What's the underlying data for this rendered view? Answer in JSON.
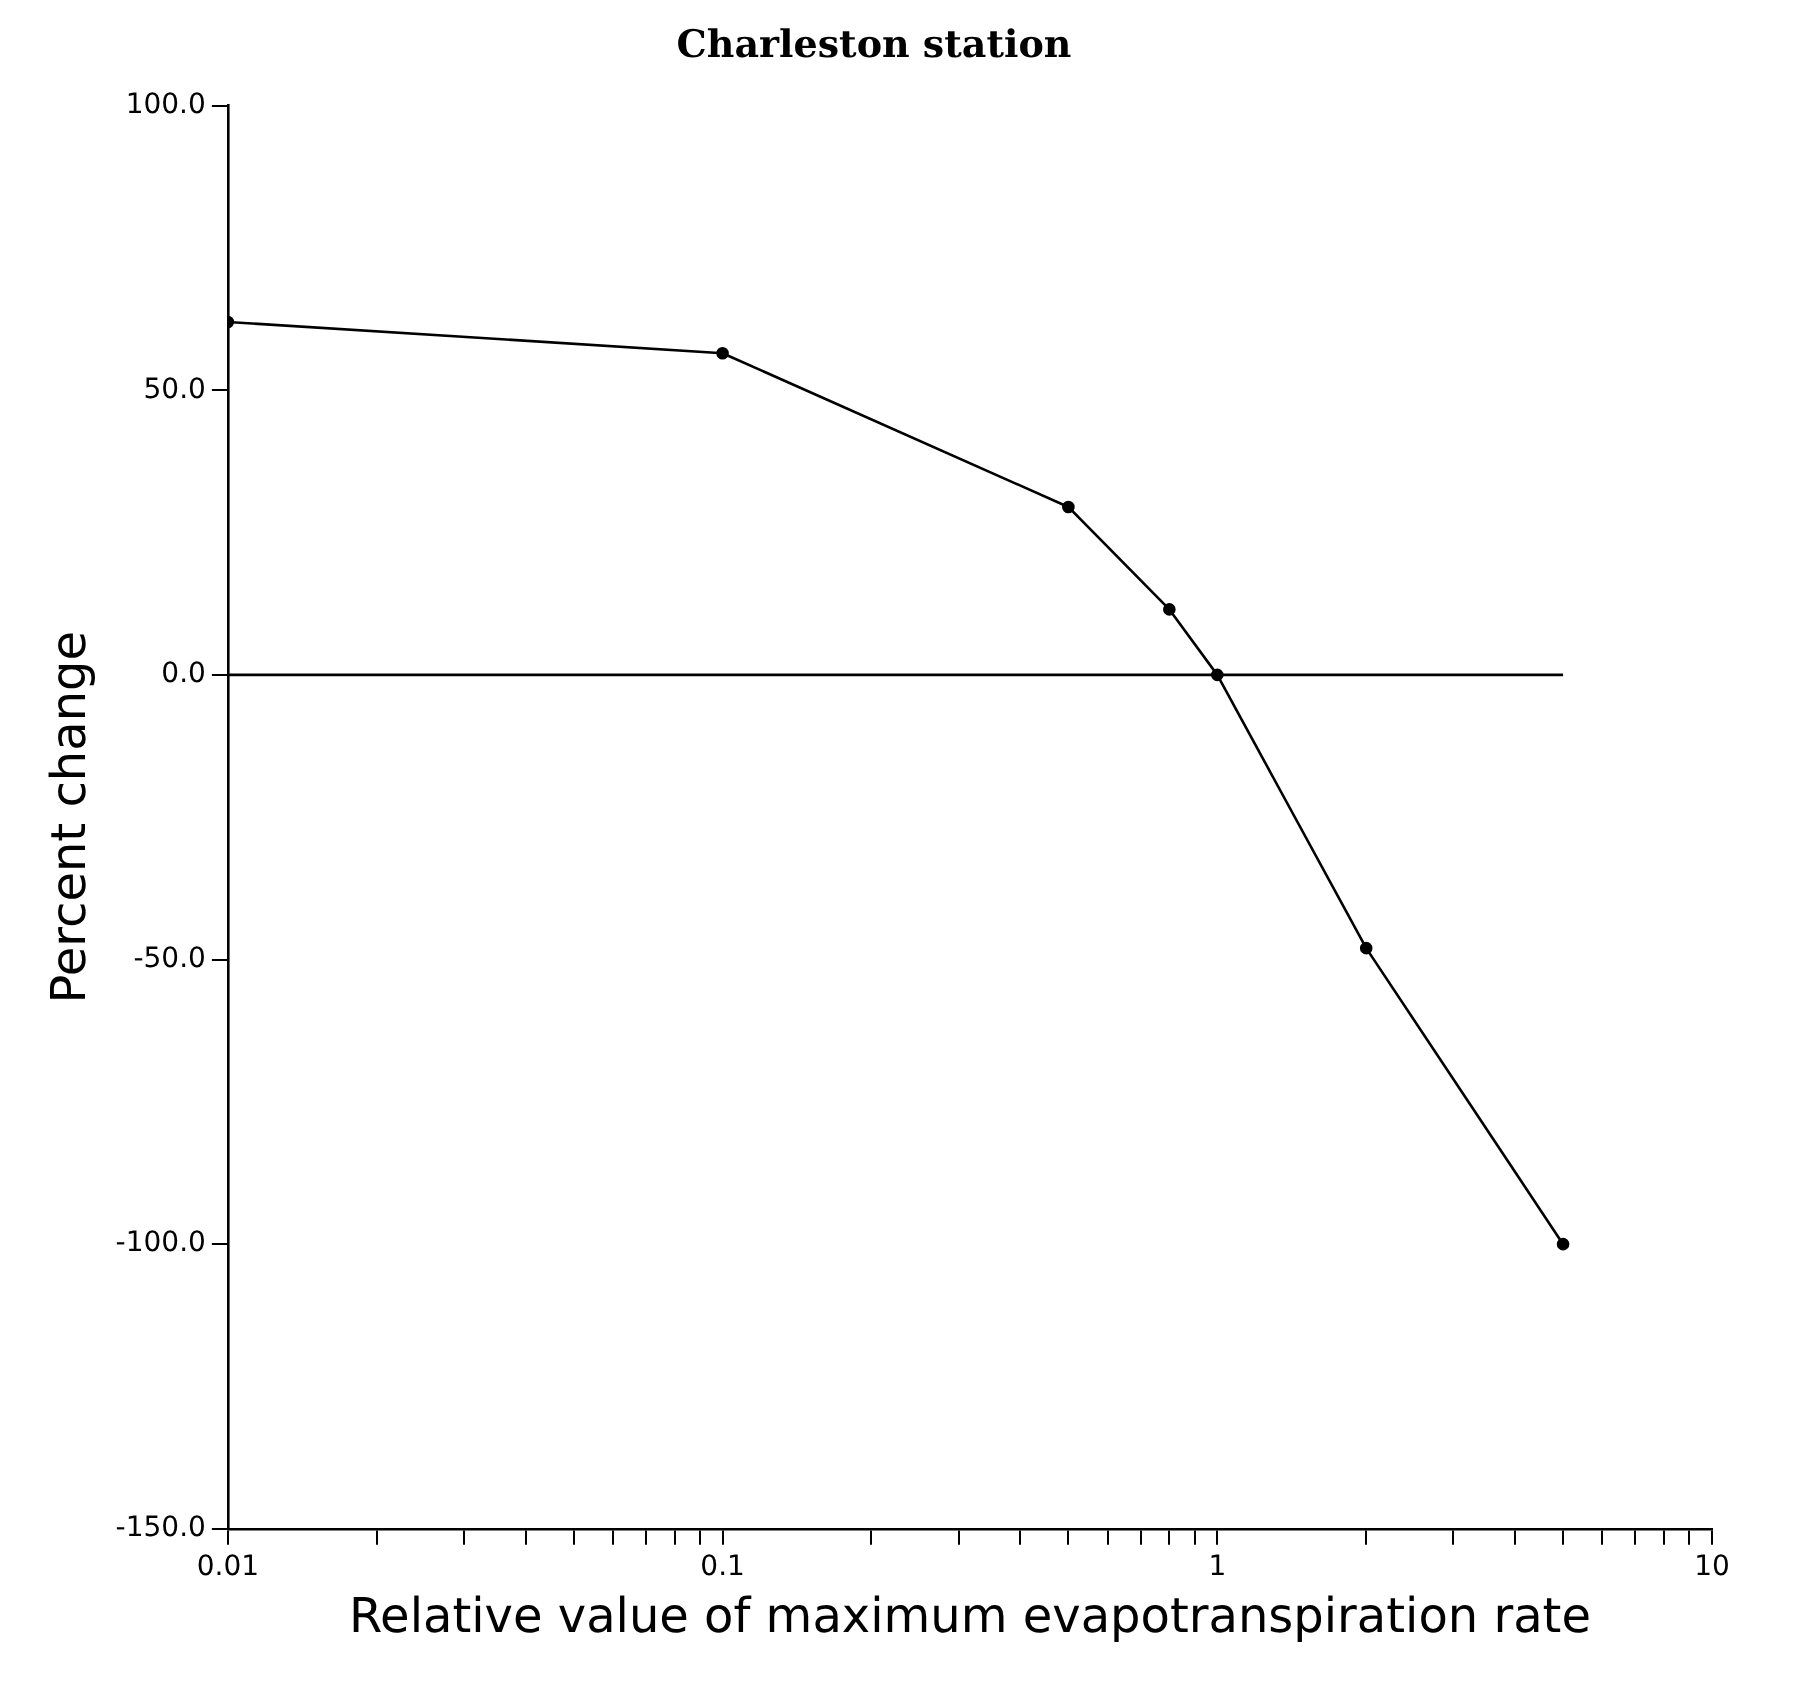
{
  "chart_data": {
    "type": "line",
    "title": "Charleston station",
    "xlabel": "Relative value of maximum evapotranspiration rate",
    "ylabel": "Percent change",
    "log": "x",
    "marker": "circle",
    "line_style": "solid",
    "grid": false,
    "legend": false,
    "xlim": [
      0.01,
      10
    ],
    "xticks": [
      {
        "value": 0.01,
        "label": "0.01"
      },
      {
        "value": 0.02,
        "label": null
      },
      {
        "value": 0.03,
        "label": null
      },
      {
        "value": 0.04,
        "label": null
      },
      {
        "value": 0.05,
        "label": null
      },
      {
        "value": 0.06,
        "label": null
      },
      {
        "value": 0.07,
        "label": null
      },
      {
        "value": 0.08,
        "label": null
      },
      {
        "value": 0.09,
        "label": null
      },
      {
        "value": 0.1,
        "label": "0.1"
      },
      {
        "value": 0.2,
        "label": null
      },
      {
        "value": 0.3,
        "label": null
      },
      {
        "value": 0.4,
        "label": null
      },
      {
        "value": 0.5,
        "label": null
      },
      {
        "value": 0.6,
        "label": null
      },
      {
        "value": 0.7,
        "label": null
      },
      {
        "value": 0.8,
        "label": null
      },
      {
        "value": 0.9,
        "label": null
      },
      {
        "value": 1,
        "label": "1"
      },
      {
        "value": 2,
        "label": null
      },
      {
        "value": 3,
        "label": null
      },
      {
        "value": 4,
        "label": null
      },
      {
        "value": 5,
        "label": null
      },
      {
        "value": 6,
        "label": null
      },
      {
        "value": 7,
        "label": null
      },
      {
        "value": 8,
        "label": null
      },
      {
        "value": 9,
        "label": null
      },
      {
        "value": 10,
        "label": "10"
      }
    ],
    "ylim": [
      -150,
      100
    ],
    "yticks": [
      {
        "value": -150,
        "label": "-150.0"
      },
      {
        "value": -100,
        "label": "-100.0"
      },
      {
        "value": -50,
        "label": "-50.0"
      },
      {
        "value": 0,
        "label": "0.0"
      },
      {
        "value": 50,
        "label": "50.0"
      },
      {
        "value": 100,
        "label": "100.0"
      }
    ],
    "series": [
      {
        "color": "#000000",
        "x": [
          0.01,
          0.1,
          0.5,
          0.8,
          1,
          2,
          5
        ],
        "values": [
          62,
          56.5,
          29.5,
          11.5,
          0,
          -48,
          -100
        ]
      },
      {
        "color": "#000000",
        "marker": "none",
        "x": [
          0.01,
          5
        ],
        "values": [
          0,
          0
        ]
      }
    ]
  }
}
